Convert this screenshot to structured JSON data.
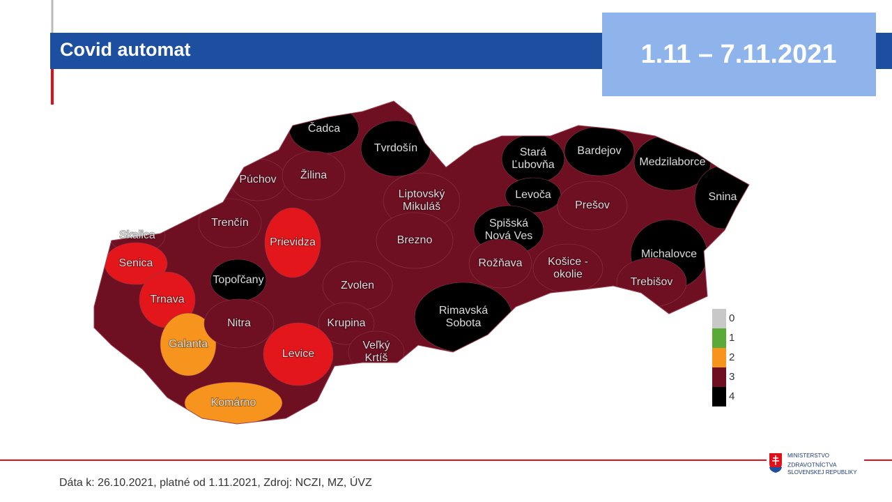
{
  "header": {
    "title": "Covid automat",
    "date_range": "1.11 – 7.11.2021"
  },
  "map": {
    "districts": [
      {
        "lines": [
          "Čadca"
        ],
        "color": "#000000"
      },
      {
        "lines": [
          "Tvrdošín"
        ],
        "color": "#000000"
      },
      {
        "lines": [
          "Púchov"
        ],
        "color": "#6e0f22"
      },
      {
        "lines": [
          "Žilina"
        ],
        "color": "#6e0f22"
      },
      {
        "lines": [
          "Liptovský",
          "Mikuláš"
        ],
        "color": "#6e0f22"
      },
      {
        "lines": [
          "Stará",
          "Ľubovňa"
        ],
        "color": "#000000"
      },
      {
        "lines": [
          "Bardejov"
        ],
        "color": "#000000"
      },
      {
        "lines": [
          "Medzilaborce"
        ],
        "color": "#000000"
      },
      {
        "lines": [
          "Snina"
        ],
        "color": "#000000"
      },
      {
        "lines": [
          "Levoča"
        ],
        "color": "#000000"
      },
      {
        "lines": [
          "Prešov"
        ],
        "color": "#6e0f22"
      },
      {
        "lines": [
          "Spišská",
          "Nová Ves"
        ],
        "color": "#000000"
      },
      {
        "lines": [
          "Trenčín"
        ],
        "color": "#6e0f22"
      },
      {
        "lines": [
          "Skalica"
        ],
        "color": "#6e0f22"
      },
      {
        "lines": [
          "Prievidza"
        ],
        "color": "#e3161c"
      },
      {
        "lines": [
          "Brezno"
        ],
        "color": "#6e0f22"
      },
      {
        "lines": [
          "Senica"
        ],
        "color": "#e3161c"
      },
      {
        "lines": [
          "Topoľčany"
        ],
        "color": "#000000"
      },
      {
        "lines": [
          "Rožňava"
        ],
        "color": "#6e0f22"
      },
      {
        "lines": [
          "Košice -",
          "okolie"
        ],
        "color": "#6e0f22"
      },
      {
        "lines": [
          "Michalovce"
        ],
        "color": "#000000"
      },
      {
        "lines": [
          "Trebišov"
        ],
        "color": "#6e0f22"
      },
      {
        "lines": [
          "Trnava"
        ],
        "color": "#e3161c"
      },
      {
        "lines": [
          "Zvolen"
        ],
        "color": "#6e0f22"
      },
      {
        "lines": [
          "Rimavská",
          "Sobota"
        ],
        "color": "#000000"
      },
      {
        "lines": [
          "Galanta"
        ],
        "color": "#f7941d"
      },
      {
        "lines": [
          "Nitra"
        ],
        "color": "#6e0f22"
      },
      {
        "lines": [
          "Krupina"
        ],
        "color": "#6e0f22"
      },
      {
        "lines": [
          "Levice"
        ],
        "color": "#e3161c"
      },
      {
        "lines": [
          "Veľký",
          "Krtíš"
        ],
        "color": "#6e0f22"
      },
      {
        "lines": [
          "Komárno"
        ],
        "color": "#f7941d"
      }
    ]
  },
  "legend": {
    "items": [
      {
        "label": "0",
        "color": "#c8c8c8"
      },
      {
        "label": "1",
        "color": "#5aaa3a"
      },
      {
        "label": "2",
        "color": "#f7941d"
      },
      {
        "label": "3",
        "color": "#6e0f22"
      },
      {
        "label": "4",
        "color": "#000000"
      }
    ]
  },
  "footer": {
    "source": "Dáta k: 26.10.2021, platné od 1.11.2021, Zdroj: NCZI, MZ, ÚVZ",
    "ministry": [
      "MINISTERSTVO",
      "ZDRAVOTNÍCTVA",
      "SLOVENSKEJ REPUBLIKY"
    ]
  }
}
